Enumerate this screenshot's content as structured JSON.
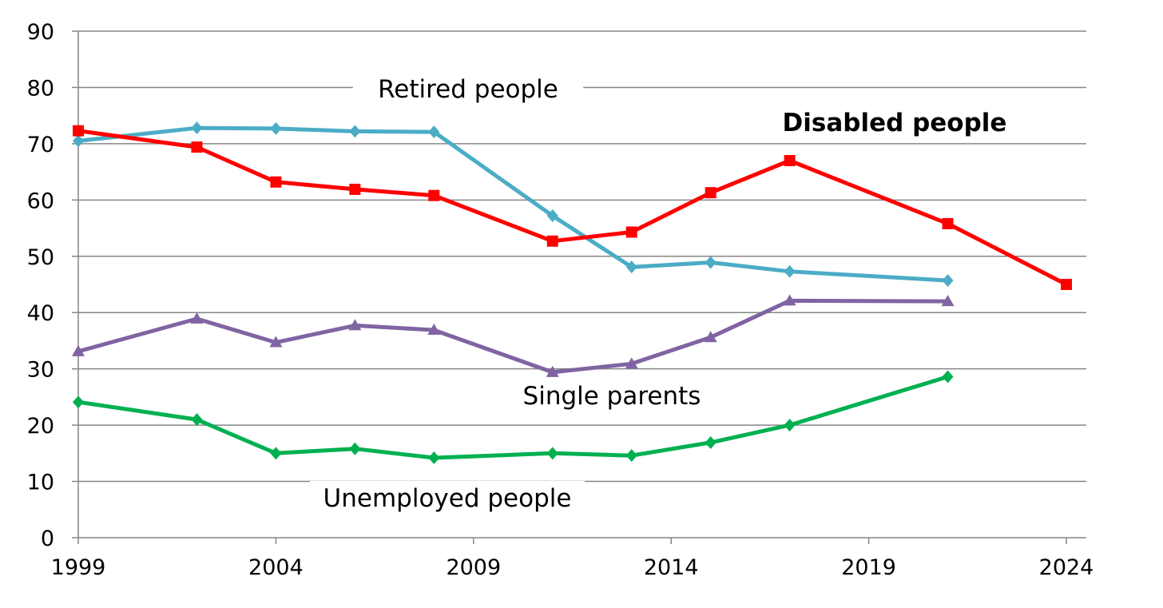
{
  "chart_data": {
    "type": "line",
    "xlim": [
      1999,
      2024
    ],
    "ylim": [
      0,
      90
    ],
    "x_ticks": [
      1999,
      2004,
      2009,
      2014,
      2019,
      2024
    ],
    "y_ticks": [
      0,
      10,
      20,
      30,
      40,
      50,
      60,
      70,
      80,
      90
    ],
    "grid": "horizontal",
    "title": "",
    "xlabel": "",
    "ylabel": "",
    "series": [
      {
        "name": "Retired people",
        "color": "#4BACC6",
        "marker": "diamond",
        "points": [
          [
            1999,
            70.5
          ],
          [
            2002,
            72.8
          ],
          [
            2004,
            72.7
          ],
          [
            2006,
            72.2
          ],
          [
            2008,
            72.1
          ],
          [
            2011,
            57.2
          ],
          [
            2013,
            48.1
          ],
          [
            2015,
            48.9
          ],
          [
            2017,
            47.3
          ],
          [
            2021,
            45.7
          ]
        ]
      },
      {
        "name": "Disabled people",
        "color": "#FF0000",
        "marker": "square",
        "bold_label": true,
        "points": [
          [
            1999,
            72.3
          ],
          [
            2002,
            69.4
          ],
          [
            2004,
            63.2
          ],
          [
            2006,
            61.9
          ],
          [
            2008,
            60.8
          ],
          [
            2011,
            52.7
          ],
          [
            2013,
            54.3
          ],
          [
            2015,
            61.3
          ],
          [
            2017,
            67.0
          ],
          [
            2021,
            55.8
          ],
          [
            2024,
            45.0
          ]
        ]
      },
      {
        "name": "Single parents",
        "color": "#8064A2",
        "marker": "triangle",
        "points": [
          [
            1999,
            33.1
          ],
          [
            2002,
            38.9
          ],
          [
            2004,
            34.7
          ],
          [
            2006,
            37.7
          ],
          [
            2008,
            36.9
          ],
          [
            2011,
            29.4
          ],
          [
            2013,
            30.9
          ],
          [
            2015,
            35.6
          ],
          [
            2017,
            42.1
          ],
          [
            2021,
            42.0
          ]
        ]
      },
      {
        "name": "Unemployed people",
        "color": "#00B050",
        "marker": "diamond",
        "points": [
          [
            1999,
            24.1
          ],
          [
            2002,
            21.0
          ],
          [
            2004,
            15.0
          ],
          [
            2006,
            15.8
          ],
          [
            2008,
            14.2
          ],
          [
            2011,
            15.0
          ],
          [
            2013,
            14.6
          ],
          [
            2015,
            16.9
          ],
          [
            2017,
            20.0
          ],
          [
            2021,
            28.6
          ]
        ]
      }
    ]
  }
}
